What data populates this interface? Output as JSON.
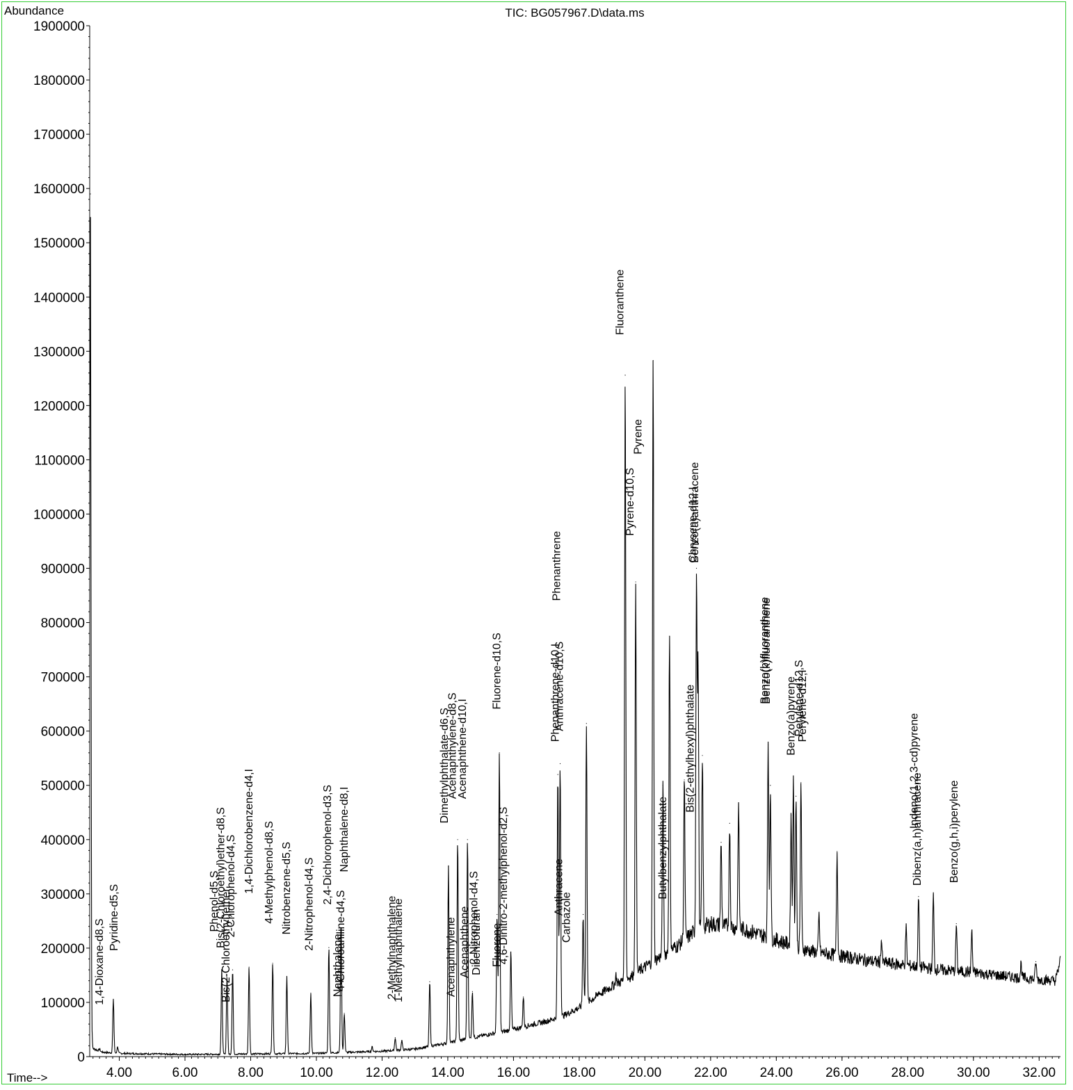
{
  "chart_data": {
    "type": "line",
    "title": "TIC: BG057967.D\\data.ms",
    "ylabel": "Abundance",
    "xlabel": "Time-->",
    "xlim": [
      3.1,
      32.65
    ],
    "ylim": [
      0,
      1900000
    ],
    "x_ticks": [
      "4.00",
      "6.00",
      "8.00",
      "10.00",
      "12.00",
      "14.00",
      "16.00",
      "18.00",
      "20.00",
      "22.00",
      "24.00",
      "26.00",
      "28.00",
      "30.00",
      "32.00"
    ],
    "y_ticks": [
      "0",
      "100000",
      "200000",
      "300000",
      "400000",
      "500000",
      "600000",
      "700000",
      "800000",
      "900000",
      "1000000",
      "1100000",
      "1200000",
      "1300000",
      "1400000",
      "1500000",
      "1600000",
      "1700000",
      "1800000",
      "1900000"
    ],
    "grid": false,
    "colors": {
      "line": "#000000",
      "frame": "#33cc33"
    },
    "series": [
      {
        "baseline": [
          [
            3.1,
            60000
          ],
          [
            3.2,
            15000
          ],
          [
            3.5,
            8000
          ],
          [
            4.0,
            6000
          ],
          [
            6.0,
            4000
          ],
          [
            8.0,
            5000
          ],
          [
            10.0,
            6000
          ],
          [
            12.0,
            10000
          ],
          [
            13.0,
            14000
          ],
          [
            14.0,
            25000
          ],
          [
            15.0,
            38000
          ],
          [
            16.0,
            50000
          ],
          [
            16.5,
            58000
          ],
          [
            17.0,
            65000
          ],
          [
            17.5,
            75000
          ],
          [
            18.0,
            90000
          ],
          [
            18.5,
            110000
          ],
          [
            19.0,
            130000
          ],
          [
            19.5,
            145000
          ],
          [
            20.0,
            165000
          ],
          [
            20.5,
            185000
          ],
          [
            21.0,
            205000
          ],
          [
            21.5,
            230000
          ],
          [
            22.0,
            245000
          ],
          [
            22.5,
            240000
          ],
          [
            23.0,
            235000
          ],
          [
            23.5,
            225000
          ],
          [
            24.0,
            215000
          ],
          [
            24.5,
            205000
          ],
          [
            25.0,
            195000
          ],
          [
            26.0,
            185000
          ],
          [
            27.0,
            175000
          ],
          [
            28.0,
            168000
          ],
          [
            29.0,
            160000
          ],
          [
            30.0,
            155000
          ],
          [
            31.0,
            148000
          ],
          [
            32.0,
            142000
          ],
          [
            32.5,
            140000
          ],
          [
            32.65,
            178000
          ]
        ],
        "peaks": [
          [
            3.12,
            1590000
          ],
          [
            3.4,
            14000
          ],
          [
            3.82,
            105000
          ],
          [
            3.95,
            18000
          ],
          [
            7.12,
            160000
          ],
          [
            7.28,
            150000
          ],
          [
            7.45,
            160000
          ],
          [
            7.95,
            165000
          ],
          [
            8.67,
            172000
          ],
          [
            9.1,
            148000
          ],
          [
            9.83,
            117000
          ],
          [
            10.38,
            201000
          ],
          [
            10.75,
            250000
          ],
          [
            10.85,
            80000
          ],
          [
            11.7,
            18000
          ],
          [
            12.4,
            35000
          ],
          [
            12.6,
            30000
          ],
          [
            13.45,
            138000
          ],
          [
            14.02,
            350000
          ],
          [
            14.3,
            400000
          ],
          [
            14.6,
            400000
          ],
          [
            14.75,
            120000
          ],
          [
            15.5,
            262000
          ],
          [
            15.57,
            560000
          ],
          [
            15.92,
            193000
          ],
          [
            16.3,
            110000
          ],
          [
            17.35,
            520000
          ],
          [
            17.42,
            540000
          ],
          [
            18.12,
            262000
          ],
          [
            18.22,
            614000
          ],
          [
            18.6,
            120000
          ],
          [
            19.12,
            150000
          ],
          [
            19.4,
            1256000
          ],
          [
            19.72,
            875000
          ],
          [
            20.25,
            1283000
          ],
          [
            20.55,
            500000
          ],
          [
            20.75,
            775000
          ],
          [
            21.2,
            510000
          ],
          [
            21.57,
            900000
          ],
          [
            21.62,
            720000
          ],
          [
            21.75,
            555000
          ],
          [
            22.32,
            395000
          ],
          [
            22.58,
            430000
          ],
          [
            22.85,
            465000
          ],
          [
            23.75,
            575000
          ],
          [
            23.82,
            500000
          ],
          [
            24.45,
            445000
          ],
          [
            24.52,
            510000
          ],
          [
            24.6,
            480000
          ],
          [
            24.75,
            505000
          ],
          [
            25.3,
            260000
          ],
          [
            25.85,
            378000
          ],
          [
            27.2,
            215000
          ],
          [
            27.95,
            238000
          ],
          [
            28.33,
            295000
          ],
          [
            28.78,
            298000
          ],
          [
            29.48,
            245000
          ],
          [
            29.95,
            232000
          ],
          [
            31.45,
            172000
          ],
          [
            31.9,
            175000
          ]
        ]
      }
    ],
    "annotations": [
      {
        "text": "1,4-Dioxane-d8,S",
        "x": 3.5,
        "y": 95000
      },
      {
        "text": "Pyridine-d5,S",
        "x": 3.95,
        "y": 195000
      },
      {
        "text": "Phenol-d5,S",
        "x": 7.0,
        "y": 230000
      },
      {
        "text": "Bis(2-Chloroethyl)ether-d8,S",
        "x": 7.2,
        "y": 200000
      },
      {
        "text": "Bis(2-Chloroethyl)ether",
        "x": 7.35,
        "y": 100000
      },
      {
        "text": "2-Chlorophenol-d4,S",
        "x": 7.5,
        "y": 220000
      },
      {
        "text": "1,4-Dichlorobenzene-d4,I",
        "x": 8.05,
        "y": 300000
      },
      {
        "text": "4-Methylphenol-d8,S",
        "x": 8.67,
        "y": 245000
      },
      {
        "text": "Nitrobenzene-d5,S",
        "x": 9.2,
        "y": 225000
      },
      {
        "text": "2-Nitrophenol-d4,S",
        "x": 9.88,
        "y": 195000
      },
      {
        "text": "2,4-Dichlorophenol-d3,S",
        "x": 10.45,
        "y": 280000
      },
      {
        "text": "Naphthalene-d8,I",
        "x": 10.95,
        "y": 340000
      },
      {
        "text": "Naphthalene",
        "x": 10.75,
        "y": 110000
      },
      {
        "text": "4-Chloroaniline-d4,S",
        "x": 10.85,
        "y": 120000
      },
      {
        "text": "2-Methylnaphthalene",
        "x": 12.4,
        "y": 105000
      },
      {
        "text": "1-Methylnaphthalene",
        "x": 12.6,
        "y": 100000
      },
      {
        "text": "Dimethylphthalate-d6,S",
        "x": 14.0,
        "y": 430000
      },
      {
        "text": "Acenaphthylene-d8,S",
        "x": 14.25,
        "y": 475000
      },
      {
        "text": "Acenaphthene-d10,I",
        "x": 14.55,
        "y": 475000
      },
      {
        "text": "Acenaphthylene",
        "x": 14.2,
        "y": 110000
      },
      {
        "text": "Acenaphthene",
        "x": 14.62,
        "y": 145000
      },
      {
        "text": "2-Nitrophenol-d4,S",
        "x": 14.9,
        "y": 170000
      },
      {
        "text": "Dibenzofuran",
        "x": 14.98,
        "y": 150000
      },
      {
        "text": "Fluorene-d10,S",
        "x": 15.6,
        "y": 640000
      },
      {
        "text": "4,6-Dinitro-2-methylphenol-d2,S",
        "x": 15.8,
        "y": 170000
      },
      {
        "text": "Fluorene",
        "x": 15.6,
        "y": 165000
      },
      {
        "text": "Phenanthrene",
        "x": 17.42,
        "y": 840000
      },
      {
        "text": "Phenanthrene-d10,I",
        "x": 17.38,
        "y": 580000
      },
      {
        "text": "Anthracene-d10,S",
        "x": 17.5,
        "y": 600000
      },
      {
        "text": "Anthracene",
        "x": 17.48,
        "y": 260000
      },
      {
        "text": "Carbazole",
        "x": 17.72,
        "y": 210000
      },
      {
        "text": "Fluoranthene",
        "x": 19.35,
        "y": 1330000
      },
      {
        "text": "Pyrene-d10,S",
        "x": 19.65,
        "y": 960000
      },
      {
        "text": "Pyrene",
        "x": 19.9,
        "y": 1110000
      },
      {
        "text": "Butylbenzylphthalate",
        "x": 20.65,
        "y": 290000
      },
      {
        "text": "Bis(2-ethylhexyl)phthalate",
        "x": 21.48,
        "y": 450000
      },
      {
        "text": "Chrysene-d12,I",
        "x": 21.57,
        "y": 910000
      },
      {
        "text": "Benzo(a)anthracene",
        "x": 21.62,
        "y": 910000
      },
      {
        "text": "Benzo(b)fluoranthene",
        "x": 23.75,
        "y": 650000
      },
      {
        "text": "Benzo(k)fluoranthene",
        "x": 23.8,
        "y": 650000
      },
      {
        "text": "Benzo(a)pyrene",
        "x": 24.55,
        "y": 555000
      },
      {
        "text": "Perylene-d12,S",
        "x": 24.8,
        "y": 590000
      },
      {
        "text": "Perylene-d12,I",
        "x": 24.9,
        "y": 580000
      },
      {
        "text": "Indeno(1,2,3-cd)pyrene",
        "x": 28.3,
        "y": 420000
      },
      {
        "text": "Dibenz(a,h)anthracene",
        "x": 28.4,
        "y": 315000
      },
      {
        "text": "Benzo(g,h,i)perylene",
        "x": 29.52,
        "y": 320000
      }
    ]
  }
}
